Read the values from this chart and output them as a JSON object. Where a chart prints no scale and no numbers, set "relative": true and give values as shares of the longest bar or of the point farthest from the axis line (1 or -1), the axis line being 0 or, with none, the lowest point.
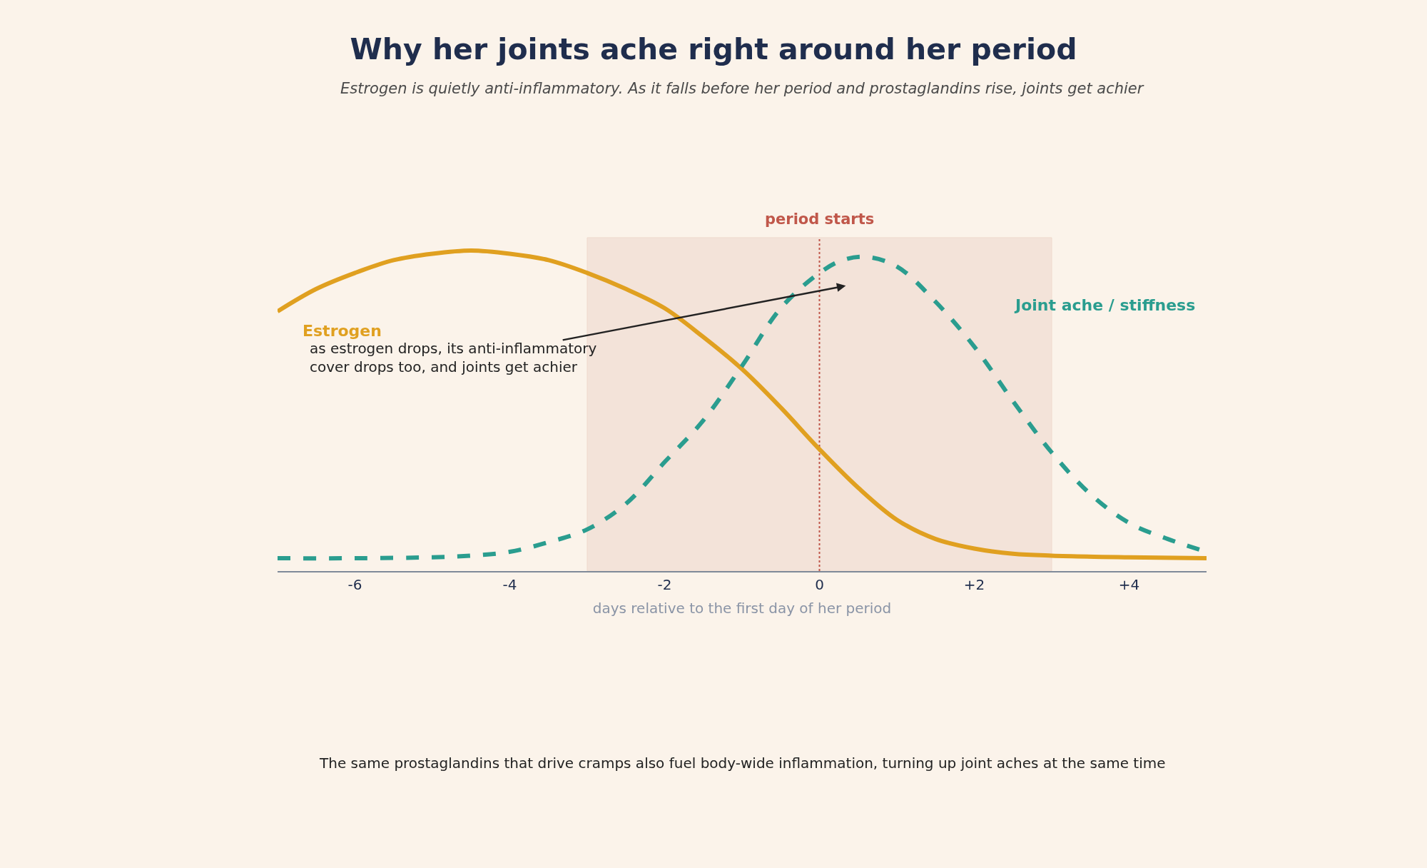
{
  "chart_data": {
    "type": "line",
    "relative": true,
    "title": "Why her joints ache right around her period",
    "subtitle": "Estrogen is quietly anti-inflammatory. As it falls before her period and prostaglandins rise, joints get achier",
    "xlabel": "days relative to the first day of her period",
    "xlim": [
      -7,
      5
    ],
    "xticks": [
      -6,
      -4,
      -2,
      0,
      {
        "value": 2,
        "label": "+2"
      },
      {
        "value": 4,
        "label": "+4"
      }
    ],
    "series": [
      {
        "name": "Estrogen",
        "color": "#e0a020",
        "line_style": "solid",
        "x": [
          -7,
          -6.5,
          -6,
          -5.5,
          -5,
          -4.5,
          -4,
          -3.5,
          -3,
          -2.5,
          -2,
          -1.5,
          -1,
          -0.5,
          0,
          0.5,
          1,
          1.5,
          2,
          2.5,
          3,
          4,
          5
        ],
        "values": [
          0.81,
          0.88,
          0.93,
          0.97,
          0.99,
          1.0,
          0.99,
          0.97,
          0.93,
          0.88,
          0.82,
          0.73,
          0.63,
          0.51,
          0.38,
          0.26,
          0.16,
          0.1,
          0.07,
          0.054,
          0.048,
          0.043,
          0.04
        ]
      },
      {
        "name": "Joint ache / stiffness",
        "color": "#2a9d8f",
        "line_style": "dashed",
        "x": [
          -7,
          -6,
          -5,
          -4.5,
          -4,
          -3.5,
          -3,
          -2.5,
          -2,
          -1.5,
          -1,
          -0.5,
          0,
          0.3,
          0.6,
          1,
          1.5,
          2,
          2.5,
          3,
          3.5,
          4,
          4.5,
          5
        ],
        "values": [
          0.04,
          0.04,
          0.043,
          0.048,
          0.06,
          0.09,
          0.13,
          0.21,
          0.34,
          0.47,
          0.64,
          0.82,
          0.93,
          0.97,
          0.98,
          0.95,
          0.84,
          0.7,
          0.53,
          0.37,
          0.24,
          0.15,
          0.1,
          0.06
        ]
      }
    ],
    "bands": [
      {
        "axis": "x",
        "from": -3,
        "to": 3,
        "color": "#f3e3d9"
      }
    ],
    "ref_lines": [
      {
        "axis": "x",
        "value": 0,
        "label": "period starts",
        "color": "#c0574a",
        "line_style": "dotted"
      }
    ],
    "annotations": [
      "as estrogen drops, its anti-inflammatory\ncover drops too, and joints get achier",
      "The same prostaglandins that drive cramps also fuel body-wide inflammation, turning up joint aches at the same time"
    ],
    "legend": false,
    "grid": false
  }
}
